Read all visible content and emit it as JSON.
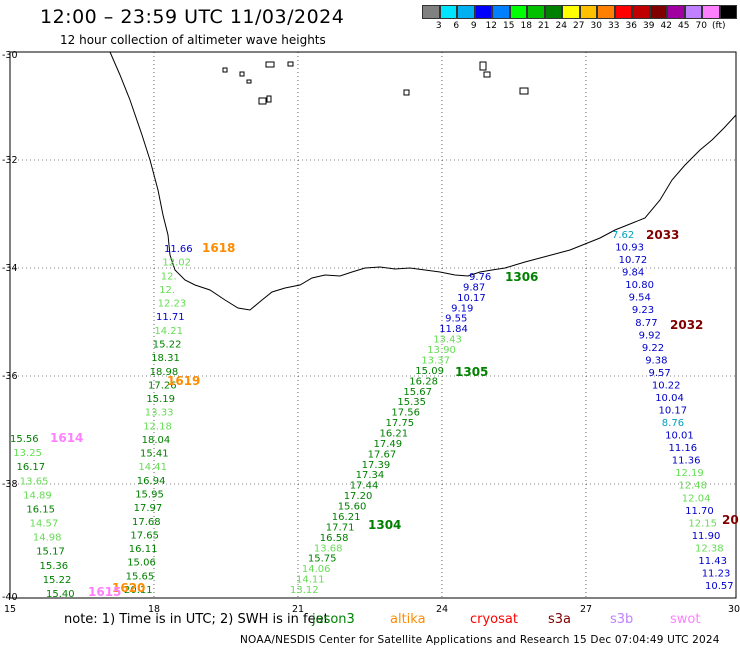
{
  "header": {
    "title": "12:00 – 23:59 UTC 11/03/2024",
    "subtitle": "12 hour collection of altimeter wave heights"
  },
  "legend": {
    "unit": "(ft)",
    "swatches": [
      {
        "color": "#808080",
        "label": ""
      },
      {
        "color": "#00e5ff",
        "label": "3"
      },
      {
        "color": "#00b0f0",
        "label": "6"
      },
      {
        "color": "#0000ff",
        "label": "9"
      },
      {
        "color": "#0080ff",
        "label": "12"
      },
      {
        "color": "#00ff00",
        "label": "15"
      },
      {
        "color": "#00c000",
        "label": "18"
      },
      {
        "color": "#008000",
        "label": "21"
      },
      {
        "color": "#ffff00",
        "label": "24"
      },
      {
        "color": "#ffc000",
        "label": "27"
      },
      {
        "color": "#ff8000",
        "label": "30"
      },
      {
        "color": "#ff0000",
        "label": "33"
      },
      {
        "color": "#c00000",
        "label": "36"
      },
      {
        "color": "#800000",
        "label": "39"
      },
      {
        "color": "#a000a0",
        "label": "42"
      },
      {
        "color": "#c080ff",
        "label": "45"
      },
      {
        "color": "#ff80ff",
        "label": "70"
      },
      {
        "color": "#000000",
        "label": ""
      }
    ]
  },
  "axes": {
    "lat_labels": [
      "-30",
      "-32",
      "-34",
      "-36",
      "-38",
      "-40"
    ],
    "lon_labels": [
      "15",
      "18",
      "21",
      "24",
      "27",
      "30"
    ]
  },
  "passes": [
    {
      "id": "1618",
      "color": "#ff8c00"
    },
    {
      "id": "1619",
      "color": "#ff8c00"
    },
    {
      "id": "1614",
      "color": "#ff80ff"
    },
    {
      "id": "1620",
      "color": "#ff8c00"
    },
    {
      "id": "1615",
      "color": "#ff80ff"
    },
    {
      "id": "1306",
      "color": "#008000"
    },
    {
      "id": "1305",
      "color": "#008000"
    },
    {
      "id": "1304",
      "color": "#008000"
    },
    {
      "id": "2033",
      "color": "#800000"
    },
    {
      "id": "2032",
      "color": "#800000"
    },
    {
      "id": "20",
      "color": "#800000"
    }
  ],
  "swh_tracks": [
    {
      "name": "track-1618",
      "values": [
        {
          "v": "11.66",
          "c": "#0000cc"
        },
        {
          "v": "12.02",
          "c": "#66dd55"
        },
        {
          "v": "12.",
          "c": "#66dd55"
        },
        {
          "v": "12.",
          "c": "#66dd55"
        },
        {
          "v": "12.23",
          "c": "#66dd55"
        },
        {
          "v": "11.71",
          "c": "#0000cc"
        },
        {
          "v": "14.21",
          "c": "#66dd55"
        },
        {
          "v": "15.22",
          "c": "#008000"
        },
        {
          "v": "18.31",
          "c": "#008000"
        },
        {
          "v": "18.98",
          "c": "#008000"
        },
        {
          "v": "17.26",
          "c": "#008000"
        },
        {
          "v": "15.19",
          "c": "#008000"
        },
        {
          "v": "13.33",
          "c": "#66dd55"
        },
        {
          "v": "12.18",
          "c": "#66dd55"
        },
        {
          "v": "18.04",
          "c": "#008000"
        },
        {
          "v": "15.41",
          "c": "#008000"
        },
        {
          "v": "14.41",
          "c": "#66dd55"
        },
        {
          "v": "16.94",
          "c": "#008000"
        },
        {
          "v": "15.95",
          "c": "#008000"
        },
        {
          "v": "17.97",
          "c": "#008000"
        },
        {
          "v": "17.68",
          "c": "#008000"
        },
        {
          "v": "17.65",
          "c": "#008000"
        },
        {
          "v": "16.11",
          "c": "#008000"
        },
        {
          "v": "15.06",
          "c": "#008000"
        },
        {
          "v": "15.65",
          "c": "#008000"
        },
        {
          "v": "20.11",
          "c": "#008000"
        }
      ]
    },
    {
      "name": "track-1614",
      "values": [
        {
          "v": "15.56",
          "c": "#008000"
        },
        {
          "v": "13.25",
          "c": "#66dd55"
        },
        {
          "v": "16.17",
          "c": "#008000"
        },
        {
          "v": "13.65",
          "c": "#66dd55"
        },
        {
          "v": "14.89",
          "c": "#66dd55"
        },
        {
          "v": "16.15",
          "c": "#008000"
        },
        {
          "v": "14.57",
          "c": "#66dd55"
        },
        {
          "v": "14.98",
          "c": "#66dd55"
        },
        {
          "v": "15.17",
          "c": "#008000"
        },
        {
          "v": "15.36",
          "c": "#008000"
        },
        {
          "v": "15.22",
          "c": "#008000"
        },
        {
          "v": "15.40",
          "c": "#008000"
        }
      ]
    },
    {
      "name": "track-1306",
      "values": [
        {
          "v": "9.76",
          "c": "#0000cc"
        },
        {
          "v": "9.87",
          "c": "#0000cc"
        },
        {
          "v": "10.17",
          "c": "#0000cc"
        },
        {
          "v": "9.19",
          "c": "#0000cc"
        },
        {
          "v": "9.55",
          "c": "#0000cc"
        },
        {
          "v": "11.84",
          "c": "#0000cc"
        },
        {
          "v": "13.43",
          "c": "#66dd55"
        },
        {
          "v": "13.90",
          "c": "#66dd55"
        },
        {
          "v": "13.37",
          "c": "#66dd55"
        },
        {
          "v": "15.09",
          "c": "#008000"
        },
        {
          "v": "16.28",
          "c": "#008000"
        },
        {
          "v": "15.67",
          "c": "#008000"
        },
        {
          "v": "15.35",
          "c": "#008000"
        },
        {
          "v": "17.56",
          "c": "#008000"
        },
        {
          "v": "17.75",
          "c": "#008000"
        },
        {
          "v": "16.21",
          "c": "#008000"
        },
        {
          "v": "17.49",
          "c": "#008000"
        },
        {
          "v": "17.67",
          "c": "#008000"
        },
        {
          "v": "17.39",
          "c": "#008000"
        },
        {
          "v": "17.34",
          "c": "#008000"
        },
        {
          "v": "17.44",
          "c": "#008000"
        },
        {
          "v": "17.20",
          "c": "#008000"
        },
        {
          "v": "15.60",
          "c": "#008000"
        },
        {
          "v": "16.21",
          "c": "#008000"
        },
        {
          "v": "17.71",
          "c": "#008000"
        },
        {
          "v": "16.58",
          "c": "#008000"
        },
        {
          "v": "13.68",
          "c": "#66dd55"
        },
        {
          "v": "15.75",
          "c": "#008000"
        },
        {
          "v": "14.06",
          "c": "#66dd55"
        },
        {
          "v": "14.11",
          "c": "#66dd55"
        },
        {
          "v": "13.12",
          "c": "#66dd55"
        }
      ]
    },
    {
      "name": "track-2033",
      "values": [
        {
          "v": "7.62",
          "c": "#00a0c0"
        },
        {
          "v": "10.93",
          "c": "#0000cc"
        },
        {
          "v": "10.72",
          "c": "#0000cc"
        },
        {
          "v": "9.84",
          "c": "#0000cc"
        },
        {
          "v": "10.80",
          "c": "#0000cc"
        },
        {
          "v": "9.54",
          "c": "#0000cc"
        },
        {
          "v": "9.23",
          "c": "#0000cc"
        },
        {
          "v": "8.77",
          "c": "#0000cc"
        },
        {
          "v": "9.92",
          "c": "#0000cc"
        },
        {
          "v": "9.22",
          "c": "#0000cc"
        },
        {
          "v": "9.38",
          "c": "#0000cc"
        },
        {
          "v": "9.57",
          "c": "#0000cc"
        },
        {
          "v": "10.22",
          "c": "#0000cc"
        },
        {
          "v": "10.04",
          "c": "#0000cc"
        },
        {
          "v": "10.17",
          "c": "#0000cc"
        },
        {
          "v": "8.76",
          "c": "#00a0c0"
        },
        {
          "v": "10.01",
          "c": "#0000cc"
        },
        {
          "v": "11.16",
          "c": "#0000cc"
        },
        {
          "v": "11.36",
          "c": "#0000cc"
        },
        {
          "v": "12.19",
          "c": "#66dd55"
        },
        {
          "v": "12.48",
          "c": "#66dd55"
        },
        {
          "v": "12.04",
          "c": "#66dd55"
        },
        {
          "v": "11.70",
          "c": "#0000cc"
        },
        {
          "v": "12.15",
          "c": "#66dd55"
        },
        {
          "v": "11.90",
          "c": "#0000cc"
        },
        {
          "v": "12.38",
          "c": "#66dd55"
        },
        {
          "v": "11.43",
          "c": "#0000cc"
        },
        {
          "v": "11.23",
          "c": "#0000cc"
        },
        {
          "v": "10.57",
          "c": "#0000cc"
        }
      ]
    }
  ],
  "note": "note:  1) Time is in UTC; 2) SWH is in feet",
  "missions": [
    {
      "label": "jason3",
      "color": "#008000"
    },
    {
      "label": "altika",
      "color": "#ff8c00"
    },
    {
      "label": "cryosat",
      "color": "#ff0000"
    },
    {
      "label": "s3a",
      "color": "#800000"
    },
    {
      "label": "s3b",
      "color": "#c080ff"
    },
    {
      "label": "swot",
      "color": "#ff80ff"
    }
  ],
  "footer": "NOAA/NESDIS Center for Satellite Applications and Research    15 Dec 07:04:49 UTC 2024"
}
